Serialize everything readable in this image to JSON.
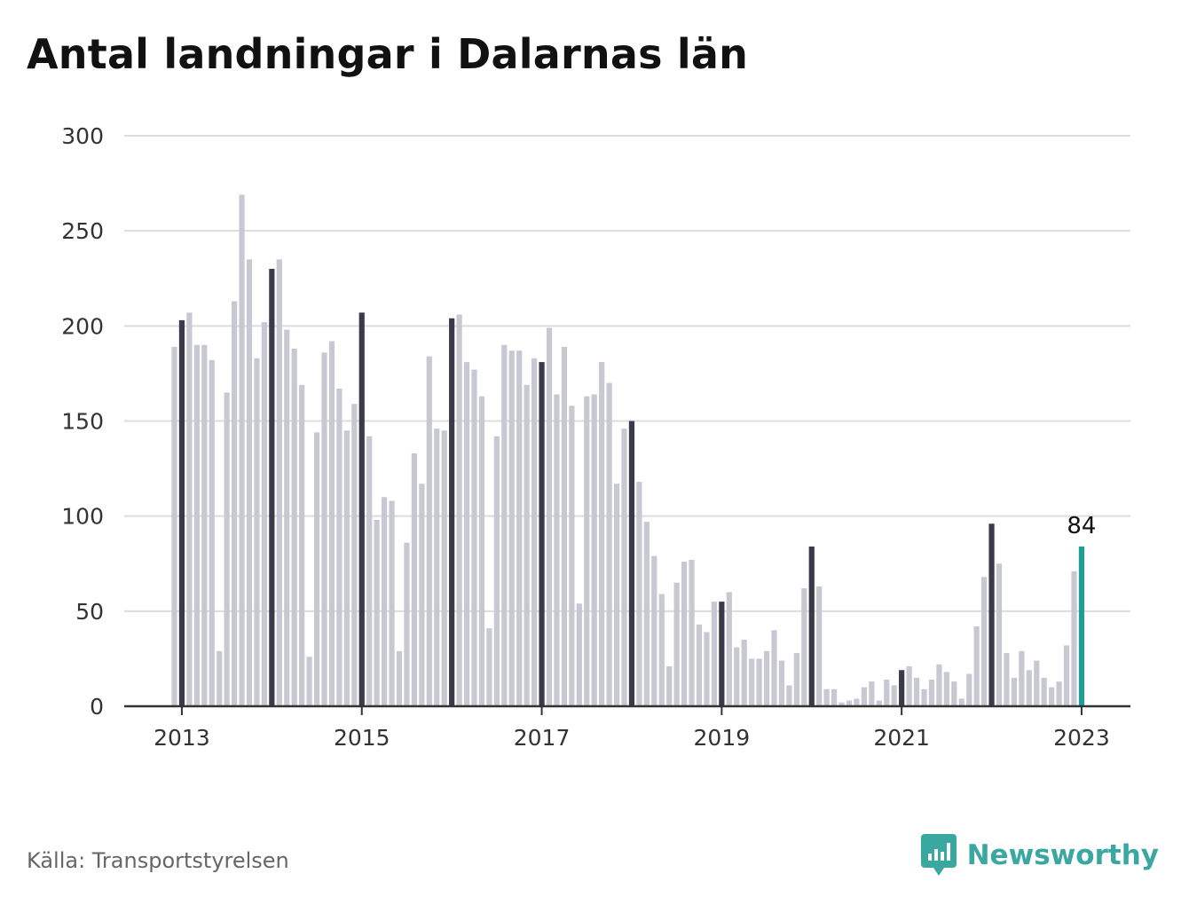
{
  "title": "Antal landningar i Dalarnas län",
  "source": "Källa: Transportstyrelsen",
  "brand": {
    "name": "Newsworthy",
    "icon": "newsworthy-logo-icon"
  },
  "colors": {
    "bar": "#c8c8d2",
    "january": "#3a3a48",
    "latest": "#1f9e96",
    "grid": "#dcdcdc",
    "axis": "#333333",
    "brand": "#3aa7a1"
  },
  "chart_data": {
    "type": "bar",
    "xlabel": "",
    "ylabel": "",
    "ylim": [
      0,
      300
    ],
    "yticks": [
      0,
      50,
      100,
      150,
      200,
      250,
      300
    ],
    "xtick_labels": [
      "2013",
      "2015",
      "2017",
      "2019",
      "2021",
      "2023"
    ],
    "start": "2012-12",
    "interval": "month",
    "values": [
      189,
      203,
      207,
      190,
      190,
      182,
      29,
      165,
      213,
      269,
      235,
      183,
      202,
      230,
      235,
      198,
      188,
      169,
      26,
      144,
      186,
      192,
      167,
      145,
      159,
      207,
      142,
      98,
      110,
      108,
      29,
      86,
      133,
      117,
      184,
      146,
      145,
      204,
      206,
      181,
      177,
      163,
      41,
      142,
      190,
      187,
      187,
      169,
      183,
      181,
      199,
      164,
      189,
      158,
      54,
      163,
      164,
      181,
      170,
      117,
      146,
      150,
      118,
      97,
      79,
      59,
      21,
      65,
      76,
      77,
      43,
      39,
      55,
      55,
      60,
      31,
      35,
      25,
      25,
      29,
      40,
      24,
      11,
      28,
      62,
      84,
      63,
      9,
      9,
      2,
      3,
      4,
      10,
      13,
      3,
      14,
      11,
      19,
      21,
      15,
      9,
      14,
      22,
      18,
      13,
      4,
      17,
      42,
      68,
      96,
      75,
      28,
      15,
      29,
      19,
      24,
      15,
      10,
      13,
      32,
      71,
      84
    ],
    "highlight": "January values in dark, latest month in teal",
    "annotations": [
      {
        "text": "84",
        "target": "latest"
      }
    ]
  }
}
